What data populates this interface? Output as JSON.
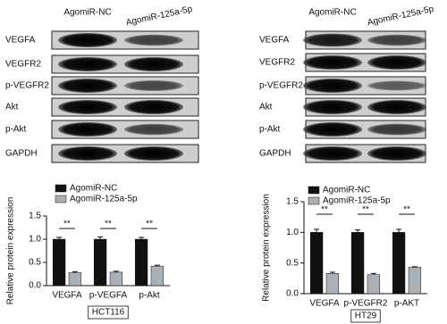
{
  "blots": [
    {
      "column_labels": [
        "AgomiR-NC",
        "AgomiR-125a-5p"
      ],
      "row_labels": [
        "VEGFA",
        "VEGFR2",
        "p-VEGFR2",
        "Akt",
        "p-Akt",
        "GAPDH"
      ]
    },
    {
      "column_labels": [
        "AgomiR-NC",
        "AgomiR-125a-5p"
      ],
      "row_labels": [
        "VEGFA",
        "VEGFR2",
        "p-VEGFR2",
        "Akt",
        "p-Akt",
        "GAPDH"
      ]
    }
  ],
  "chart_data": [
    {
      "type": "bar",
      "xlabel": "HCT116",
      "ylabel": "Relative protein expression",
      "categories": [
        "VEGFA",
        "p-VEGFA",
        "p-Akt"
      ],
      "series": [
        {
          "name": "AgomiR-NC",
          "color": "#111111",
          "values": [
            1.0,
            1.0,
            1.0
          ],
          "errors": [
            0.04,
            0.05,
            0.04
          ]
        },
        {
          "name": "AgomiR-125a-5p",
          "color": "#a9b0b8",
          "values": [
            0.28,
            0.29,
            0.42
          ],
          "errors": [
            0.02,
            0.02,
            0.02
          ]
        }
      ],
      "annotations": [
        "**",
        "**",
        "**"
      ],
      "ylim": [
        0,
        1.5
      ],
      "yticks": [
        {
          "value": 0,
          "label": "0.0"
        },
        0.5,
        {
          "value": 1,
          "label": "1.0"
        },
        1.5
      ]
    },
    {
      "type": "bar",
      "xlabel": "HT29",
      "ylabel": "Relative protein expression",
      "categories": [
        "VEGFA",
        "p-VEGFR2",
        "p-AKT"
      ],
      "series": [
        {
          "name": "AgomiR-NC",
          "color": "#111111",
          "values": [
            1.0,
            1.0,
            1.0
          ],
          "errors": [
            0.05,
            0.04,
            0.05
          ]
        },
        {
          "name": "AgomiR-125a-5p",
          "color": "#a9b0b8",
          "values": [
            0.33,
            0.31,
            0.43
          ],
          "errors": [
            0.02,
            0.02,
            0.01
          ]
        }
      ],
      "annotations": [
        "**",
        "**",
        "**"
      ],
      "ylim": [
        0,
        1.5
      ],
      "yticks": [
        {
          "value": 0,
          "label": "0.0"
        },
        0.5,
        {
          "value": 1,
          "label": "1.0"
        },
        1.5
      ]
    }
  ]
}
